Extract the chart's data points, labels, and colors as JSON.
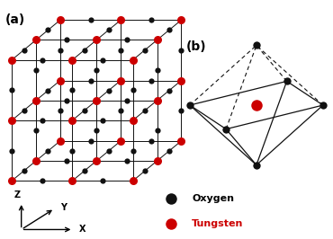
{
  "oxygen_color": "#111111",
  "tungsten_color": "#cc0000",
  "line_color": "#111111",
  "background": "#ffffff",
  "label_a": "(a)",
  "label_b": "(b)",
  "legend_oxygen": "Oxygen",
  "legend_tungsten": "Tungsten"
}
